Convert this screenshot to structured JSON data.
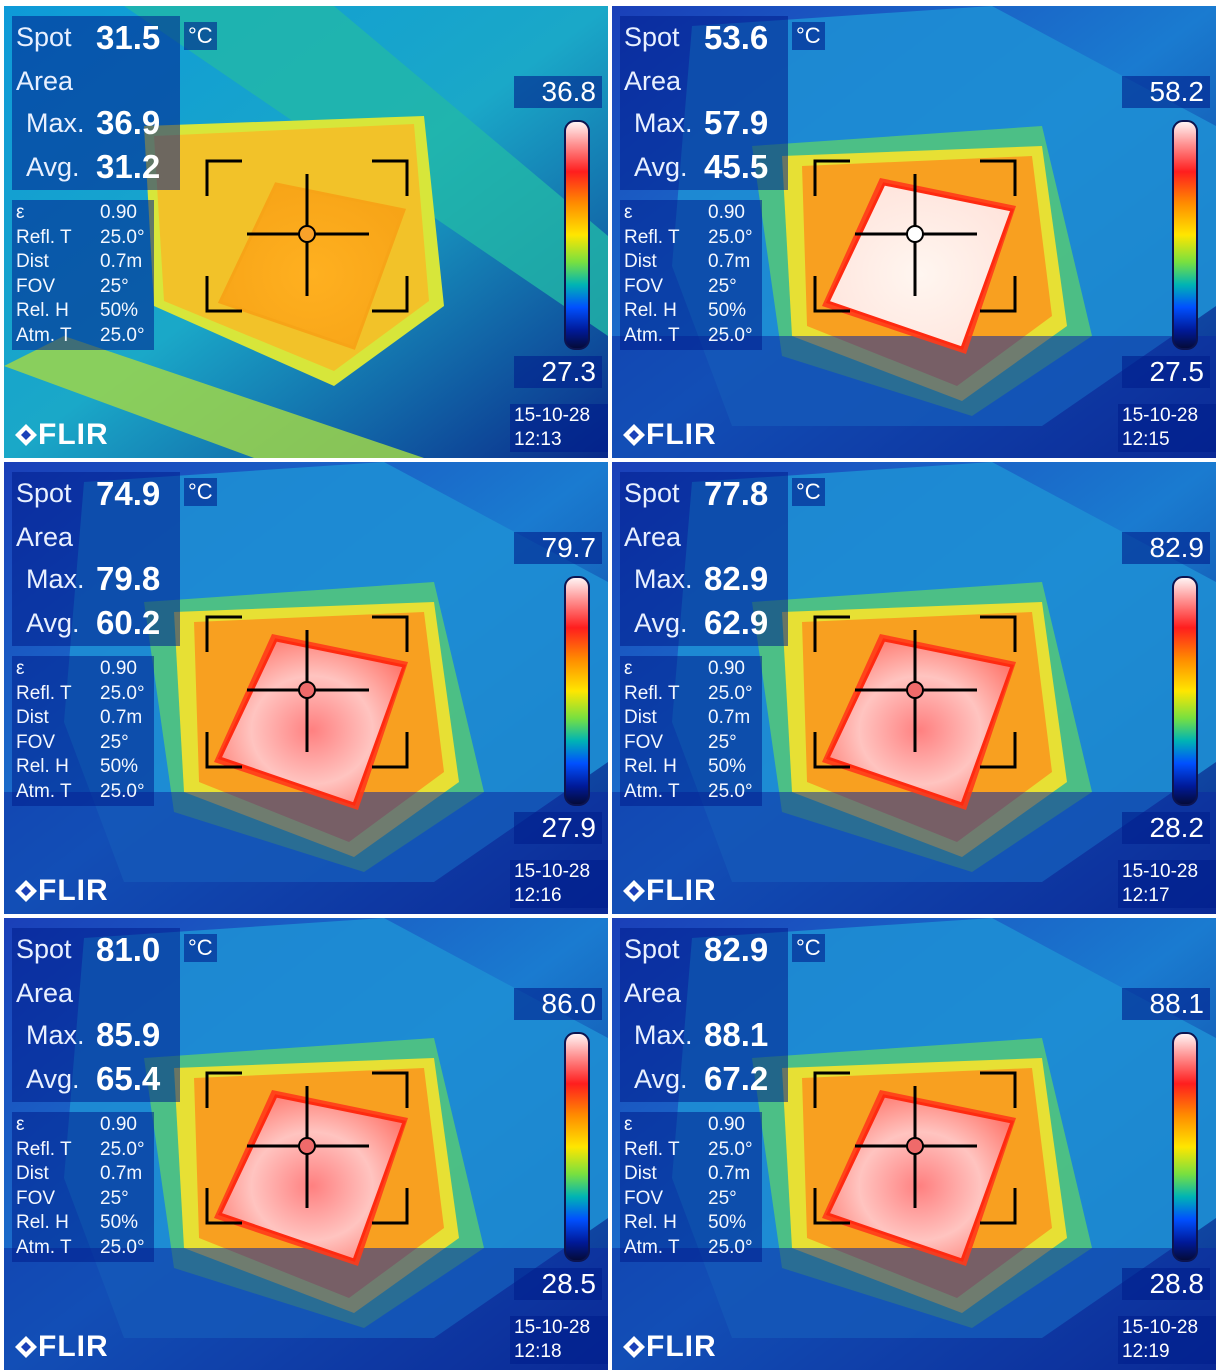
{
  "common": {
    "unit": "°C",
    "spot_label": "Spot",
    "area_label": "Area",
    "max_label": "Max.",
    "avg_label": "Avg.",
    "params": [
      {
        "label": "ε",
        "value": "0.90"
      },
      {
        "label": "Refl. T",
        "value": "25.0°"
      },
      {
        "label": "Dist",
        "value": "0.7m"
      },
      {
        "label": "FOV",
        "value": "25°"
      },
      {
        "label": "Rel. H",
        "value": "50%"
      },
      {
        "label": "Atm. T",
        "value": "25.0°"
      }
    ],
    "brand": "FLIR",
    "date": "15-10-28"
  },
  "panels": [
    {
      "spot": "31.5",
      "max": "36.9",
      "avg": "31.2",
      "scale_max": "36.8",
      "scale_min": "27.3",
      "time": "12:13",
      "heat": 0.25
    },
    {
      "spot": "53.6",
      "max": "57.9",
      "avg": "45.5",
      "scale_max": "58.2",
      "scale_min": "27.5",
      "time": "12:15",
      "heat": 0.6
    },
    {
      "spot": "74.9",
      "max": "79.8",
      "avg": "60.2",
      "scale_max": "79.7",
      "scale_min": "27.9",
      "time": "12:16",
      "heat": 0.82
    },
    {
      "spot": "77.8",
      "max": "82.9",
      "avg": "62.9",
      "scale_max": "82.9",
      "scale_min": "28.2",
      "time": "12:17",
      "heat": 0.86
    },
    {
      "spot": "81.0",
      "max": "85.9",
      "avg": "65.4",
      "scale_max": "86.0",
      "scale_min": "28.5",
      "time": "12:18",
      "heat": 0.9
    },
    {
      "spot": "82.9",
      "max": "88.1",
      "avg": "67.2",
      "scale_max": "88.1",
      "scale_min": "28.8",
      "time": "12:19",
      "heat": 0.94
    }
  ]
}
